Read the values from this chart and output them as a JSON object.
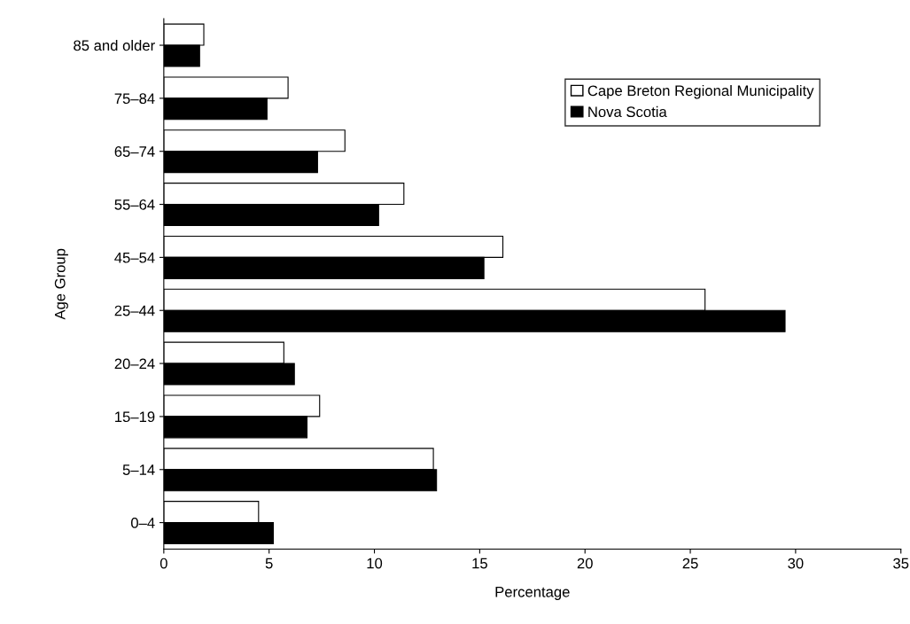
{
  "chart_data": {
    "type": "bar",
    "orientation": "horizontal",
    "xlabel": "Percentage",
    "ylabel": "Age Group",
    "categories": [
      "85 and older",
      "75–84",
      "65–74",
      "55–64",
      "45–54",
      "25–44",
      "20–24",
      "15–19",
      "5–14",
      "0–4"
    ],
    "series": [
      {
        "name": "Cape Breton Regional Municipality",
        "color": "#ffffff",
        "values": [
          1.9,
          5.9,
          8.6,
          11.4,
          16.1,
          25.7,
          5.7,
          7.4,
          12.8,
          4.5
        ]
      },
      {
        "name": "Nova Scotia",
        "color": "#000000",
        "values": [
          1.7,
          4.9,
          7.3,
          10.2,
          15.2,
          29.5,
          6.2,
          6.8,
          12.95,
          5.2
        ]
      }
    ],
    "xlim": [
      0,
      35
    ],
    "xticks": [
      0,
      5,
      10,
      15,
      20,
      25,
      30,
      35
    ],
    "grid": false,
    "legend": "top right"
  }
}
